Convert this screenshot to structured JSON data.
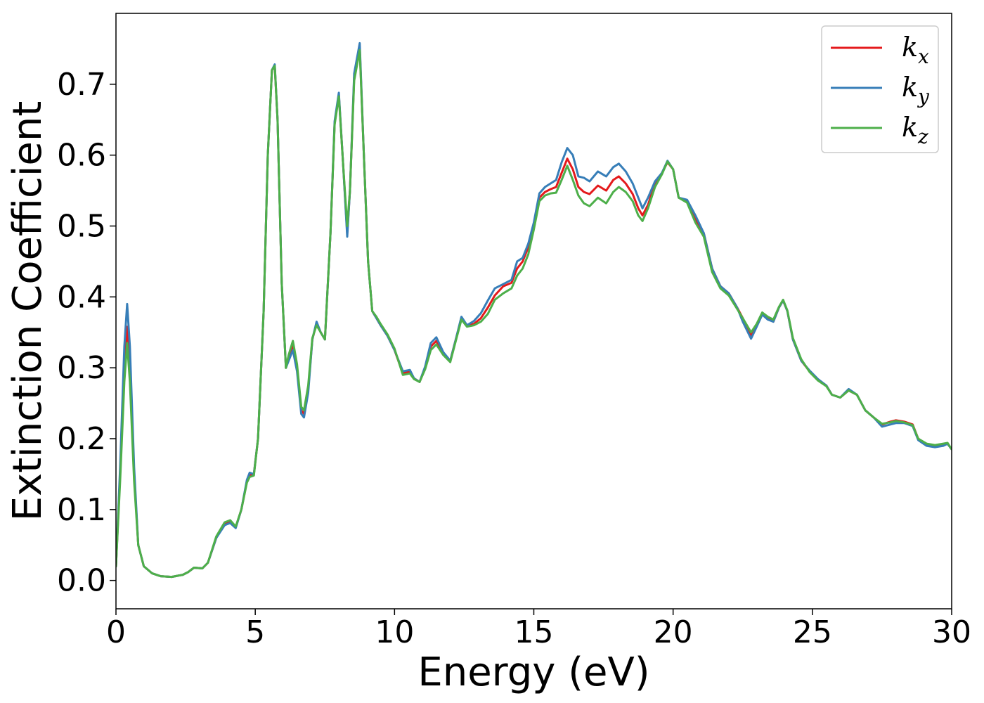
{
  "chart_data": {
    "type": "line",
    "xlabel": "Energy (eV)",
    "ylabel": "Extinction Coefficient",
    "xlim": [
      0,
      30
    ],
    "ylim": [
      -0.04,
      0.8
    ],
    "xticks": [
      0,
      5,
      10,
      15,
      20,
      25,
      30
    ],
    "xtick_labels": [
      "0",
      "5",
      "10",
      "15",
      "20",
      "25",
      "30"
    ],
    "yticks": [
      0.0,
      0.1,
      0.2,
      0.3,
      0.4,
      0.5,
      0.6,
      0.7
    ],
    "ytick_labels": [
      "0.0",
      "0.1",
      "0.2",
      "0.3",
      "0.4",
      "0.5",
      "0.6",
      "0.7"
    ],
    "grid": false,
    "legend_position": "top-right",
    "series": [
      {
        "name": "k_x",
        "label_main": "k",
        "label_sub": "x",
        "color": "#e41a1c",
        "x": [
          0,
          0.15,
          0.3,
          0.4,
          0.5,
          0.65,
          0.8,
          1.0,
          1.3,
          1.6,
          2.0,
          2.4,
          2.6,
          2.8,
          3.1,
          3.3,
          3.6,
          3.9,
          4.1,
          4.3,
          4.5,
          4.7,
          4.8,
          4.95,
          5.1,
          5.3,
          5.45,
          5.6,
          5.7,
          5.8,
          5.95,
          6.1,
          6.2,
          6.35,
          6.5,
          6.65,
          6.75,
          6.9,
          7.05,
          7.2,
          7.35,
          7.5,
          7.7,
          7.85,
          8.0,
          8.15,
          8.3,
          8.4,
          8.55,
          8.75,
          8.9,
          9.05,
          9.2,
          9.35,
          9.5,
          9.75,
          10.0,
          10.3,
          10.55,
          10.7,
          10.9,
          11.1,
          11.3,
          11.5,
          11.75,
          12.0,
          12.2,
          12.4,
          12.6,
          12.85,
          13.1,
          13.35,
          13.6,
          13.9,
          14.2,
          14.4,
          14.6,
          14.8,
          15.0,
          15.2,
          15.4,
          15.6,
          15.8,
          16.0,
          16.2,
          16.4,
          16.6,
          16.8,
          17.0,
          17.3,
          17.6,
          17.85,
          18.05,
          18.3,
          18.55,
          18.75,
          18.9,
          19.1,
          19.35,
          19.6,
          19.8,
          20.0,
          20.2,
          20.5,
          20.8,
          21.1,
          21.4,
          21.7,
          22.0,
          22.3,
          22.5,
          22.8,
          23.0,
          23.2,
          23.4,
          23.6,
          23.8,
          23.95,
          24.1,
          24.3,
          24.6,
          24.9,
          25.2,
          25.5,
          25.7,
          26.0,
          26.3,
          26.6,
          26.9,
          27.2,
          27.5,
          27.8,
          28.0,
          28.3,
          28.6,
          28.8,
          29.1,
          29.4,
          29.7,
          29.85,
          30.0
        ],
        "y": [
          0.02,
          0.15,
          0.3,
          0.358,
          0.3,
          0.15,
          0.05,
          0.02,
          0.01,
          0.006,
          0.005,
          0.008,
          0.012,
          0.018,
          0.017,
          0.025,
          0.06,
          0.08,
          0.083,
          0.075,
          0.1,
          0.14,
          0.148,
          0.15,
          0.2,
          0.38,
          0.6,
          0.72,
          0.725,
          0.65,
          0.42,
          0.3,
          0.315,
          0.333,
          0.3,
          0.24,
          0.235,
          0.27,
          0.34,
          0.363,
          0.35,
          0.34,
          0.49,
          0.645,
          0.685,
          0.59,
          0.49,
          0.55,
          0.71,
          0.752,
          0.6,
          0.45,
          0.38,
          0.37,
          0.36,
          0.345,
          0.325,
          0.292,
          0.295,
          0.285,
          0.28,
          0.3,
          0.33,
          0.338,
          0.32,
          0.31,
          0.34,
          0.37,
          0.36,
          0.362,
          0.37,
          0.385,
          0.402,
          0.415,
          0.42,
          0.44,
          0.45,
          0.47,
          0.5,
          0.54,
          0.548,
          0.552,
          0.555,
          0.575,
          0.595,
          0.58,
          0.555,
          0.548,
          0.545,
          0.557,
          0.55,
          0.565,
          0.57,
          0.56,
          0.545,
          0.525,
          0.515,
          0.53,
          0.56,
          0.575,
          0.59,
          0.58,
          0.54,
          0.535,
          0.51,
          0.49,
          0.44,
          0.415,
          0.405,
          0.385,
          0.37,
          0.345,
          0.36,
          0.377,
          0.37,
          0.365,
          0.385,
          0.395,
          0.38,
          0.34,
          0.31,
          0.295,
          0.283,
          0.275,
          0.262,
          0.258,
          0.268,
          0.262,
          0.24,
          0.23,
          0.22,
          0.224,
          0.226,
          0.224,
          0.22,
          0.2,
          0.192,
          0.19,
          0.192,
          0.193,
          0.185
        ]
      },
      {
        "name": "k_y",
        "label_main": "k",
        "label_sub": "y",
        "color": "#377eb8",
        "x": [
          0,
          0.15,
          0.3,
          0.4,
          0.5,
          0.65,
          0.8,
          1.0,
          1.3,
          1.6,
          2.0,
          2.4,
          2.6,
          2.8,
          3.1,
          3.3,
          3.6,
          3.9,
          4.1,
          4.3,
          4.5,
          4.7,
          4.8,
          4.95,
          5.1,
          5.3,
          5.45,
          5.6,
          5.7,
          5.8,
          5.95,
          6.1,
          6.2,
          6.35,
          6.5,
          6.65,
          6.75,
          6.9,
          7.05,
          7.2,
          7.35,
          7.5,
          7.7,
          7.85,
          8.0,
          8.15,
          8.3,
          8.4,
          8.55,
          8.75,
          8.9,
          9.05,
          9.2,
          9.35,
          9.5,
          9.75,
          10.0,
          10.3,
          10.55,
          10.7,
          10.9,
          11.1,
          11.3,
          11.5,
          11.75,
          12.0,
          12.2,
          12.4,
          12.6,
          12.85,
          13.1,
          13.35,
          13.6,
          13.9,
          14.2,
          14.4,
          14.6,
          14.8,
          15.0,
          15.2,
          15.4,
          15.6,
          15.8,
          16.0,
          16.2,
          16.4,
          16.6,
          16.8,
          17.0,
          17.3,
          17.6,
          17.85,
          18.05,
          18.3,
          18.55,
          18.75,
          18.9,
          19.1,
          19.35,
          19.6,
          19.8,
          20.0,
          20.2,
          20.5,
          20.8,
          21.1,
          21.4,
          21.7,
          22.0,
          22.3,
          22.5,
          22.8,
          23.0,
          23.2,
          23.4,
          23.6,
          23.8,
          23.95,
          24.1,
          24.3,
          24.6,
          24.9,
          25.2,
          25.5,
          25.7,
          26.0,
          26.3,
          26.6,
          26.9,
          27.2,
          27.5,
          27.8,
          28.0,
          28.3,
          28.6,
          28.8,
          29.1,
          29.4,
          29.7,
          29.85,
          30.0
        ],
        "y": [
          0.02,
          0.16,
          0.33,
          0.39,
          0.33,
          0.16,
          0.05,
          0.02,
          0.01,
          0.006,
          0.005,
          0.008,
          0.012,
          0.018,
          0.017,
          0.025,
          0.06,
          0.078,
          0.081,
          0.074,
          0.1,
          0.142,
          0.152,
          0.15,
          0.2,
          0.38,
          0.6,
          0.72,
          0.728,
          0.65,
          0.42,
          0.3,
          0.31,
          0.325,
          0.295,
          0.235,
          0.23,
          0.265,
          0.34,
          0.365,
          0.35,
          0.34,
          0.49,
          0.648,
          0.688,
          0.59,
          0.485,
          0.55,
          0.715,
          0.758,
          0.6,
          0.45,
          0.38,
          0.37,
          0.36,
          0.345,
          0.325,
          0.295,
          0.297,
          0.285,
          0.28,
          0.302,
          0.335,
          0.343,
          0.322,
          0.31,
          0.34,
          0.372,
          0.36,
          0.366,
          0.377,
          0.395,
          0.412,
          0.418,
          0.424,
          0.45,
          0.455,
          0.475,
          0.505,
          0.546,
          0.555,
          0.56,
          0.565,
          0.59,
          0.61,
          0.6,
          0.57,
          0.568,
          0.563,
          0.577,
          0.57,
          0.583,
          0.588,
          0.577,
          0.56,
          0.54,
          0.525,
          0.54,
          0.563,
          0.575,
          0.592,
          0.58,
          0.54,
          0.537,
          0.515,
          0.49,
          0.44,
          0.415,
          0.405,
          0.385,
          0.365,
          0.341,
          0.358,
          0.375,
          0.368,
          0.365,
          0.385,
          0.395,
          0.38,
          0.34,
          0.31,
          0.296,
          0.284,
          0.275,
          0.262,
          0.258,
          0.27,
          0.262,
          0.24,
          0.23,
          0.217,
          0.22,
          0.222,
          0.222,
          0.218,
          0.198,
          0.19,
          0.188,
          0.19,
          0.193,
          0.185
        ]
      },
      {
        "name": "k_z",
        "label_main": "k",
        "label_sub": "z",
        "color": "#4daf4a",
        "x": [
          0,
          0.15,
          0.3,
          0.4,
          0.5,
          0.65,
          0.8,
          1.0,
          1.3,
          1.6,
          2.0,
          2.4,
          2.6,
          2.8,
          3.1,
          3.3,
          3.6,
          3.9,
          4.1,
          4.3,
          4.5,
          4.7,
          4.8,
          4.95,
          5.1,
          5.3,
          5.45,
          5.6,
          5.7,
          5.8,
          5.95,
          6.1,
          6.2,
          6.35,
          6.5,
          6.65,
          6.75,
          6.9,
          7.05,
          7.2,
          7.35,
          7.5,
          7.7,
          7.85,
          8.0,
          8.15,
          8.3,
          8.4,
          8.55,
          8.75,
          8.9,
          9.05,
          9.2,
          9.35,
          9.5,
          9.75,
          10.0,
          10.3,
          10.55,
          10.7,
          10.9,
          11.1,
          11.3,
          11.5,
          11.75,
          12.0,
          12.2,
          12.4,
          12.6,
          12.85,
          13.1,
          13.35,
          13.6,
          13.9,
          14.2,
          14.4,
          14.6,
          14.8,
          15.0,
          15.2,
          15.4,
          15.6,
          15.8,
          16.0,
          16.2,
          16.4,
          16.6,
          16.8,
          17.0,
          17.3,
          17.6,
          17.85,
          18.05,
          18.3,
          18.55,
          18.75,
          18.9,
          19.1,
          19.35,
          19.6,
          19.8,
          20.0,
          20.2,
          20.5,
          20.8,
          21.1,
          21.4,
          21.7,
          22.0,
          22.3,
          22.5,
          22.8,
          23.0,
          23.2,
          23.4,
          23.6,
          23.8,
          23.95,
          24.1,
          24.3,
          24.6,
          24.9,
          25.2,
          25.5,
          25.7,
          26.0,
          26.3,
          26.6,
          26.9,
          27.2,
          27.5,
          27.8,
          28.0,
          28.3,
          28.6,
          28.8,
          29.1,
          29.4,
          29.7,
          29.85,
          30.0
        ],
        "y": [
          0.02,
          0.14,
          0.28,
          0.335,
          0.28,
          0.14,
          0.05,
          0.02,
          0.01,
          0.006,
          0.005,
          0.008,
          0.012,
          0.018,
          0.017,
          0.025,
          0.062,
          0.082,
          0.085,
          0.076,
          0.1,
          0.138,
          0.146,
          0.148,
          0.2,
          0.38,
          0.6,
          0.72,
          0.726,
          0.65,
          0.42,
          0.3,
          0.318,
          0.338,
          0.305,
          0.245,
          0.24,
          0.275,
          0.342,
          0.36,
          0.35,
          0.34,
          0.49,
          0.643,
          0.683,
          0.59,
          0.5,
          0.55,
          0.705,
          0.748,
          0.6,
          0.45,
          0.38,
          0.372,
          0.362,
          0.347,
          0.327,
          0.29,
          0.292,
          0.284,
          0.28,
          0.298,
          0.325,
          0.333,
          0.318,
          0.308,
          0.338,
          0.368,
          0.358,
          0.36,
          0.365,
          0.376,
          0.396,
          0.405,
          0.412,
          0.43,
          0.44,
          0.46,
          0.495,
          0.535,
          0.543,
          0.546,
          0.547,
          0.565,
          0.585,
          0.565,
          0.543,
          0.532,
          0.528,
          0.54,
          0.532,
          0.548,
          0.555,
          0.548,
          0.535,
          0.515,
          0.507,
          0.525,
          0.555,
          0.573,
          0.591,
          0.58,
          0.54,
          0.533,
          0.505,
          0.485,
          0.435,
          0.412,
          0.402,
          0.383,
          0.37,
          0.35,
          0.362,
          0.378,
          0.372,
          0.368,
          0.386,
          0.396,
          0.381,
          0.342,
          0.312,
          0.294,
          0.282,
          0.274,
          0.262,
          0.258,
          0.268,
          0.262,
          0.24,
          0.23,
          0.221,
          0.223,
          0.225,
          0.223,
          0.219,
          0.2,
          0.193,
          0.191,
          0.193,
          0.194,
          0.185
        ]
      }
    ]
  }
}
